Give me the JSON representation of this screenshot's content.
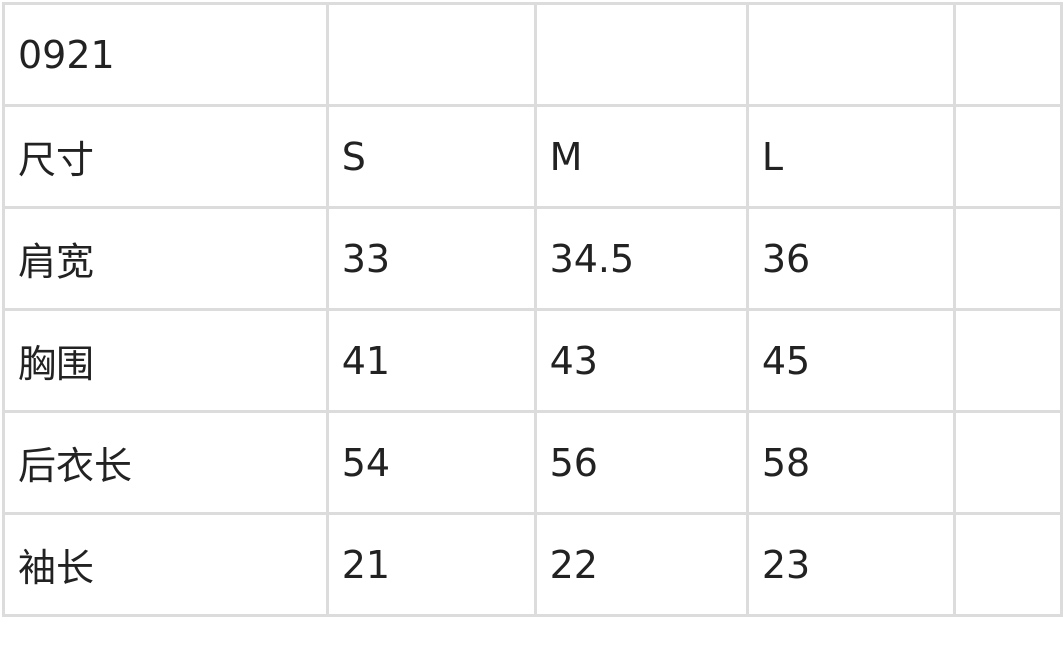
{
  "table": {
    "title_row": [
      "0921",
      "",
      "",
      ""
    ],
    "header": [
      "尺寸",
      "S",
      "M",
      "L"
    ],
    "rows": [
      [
        "肩宽",
        "33",
        "34.5",
        "36"
      ],
      [
        "胸围",
        "41",
        "43",
        "45"
      ],
      [
        "后衣长",
        "54",
        "56",
        "58"
      ],
      [
        "袖长",
        "21",
        "22",
        "23"
      ]
    ]
  }
}
